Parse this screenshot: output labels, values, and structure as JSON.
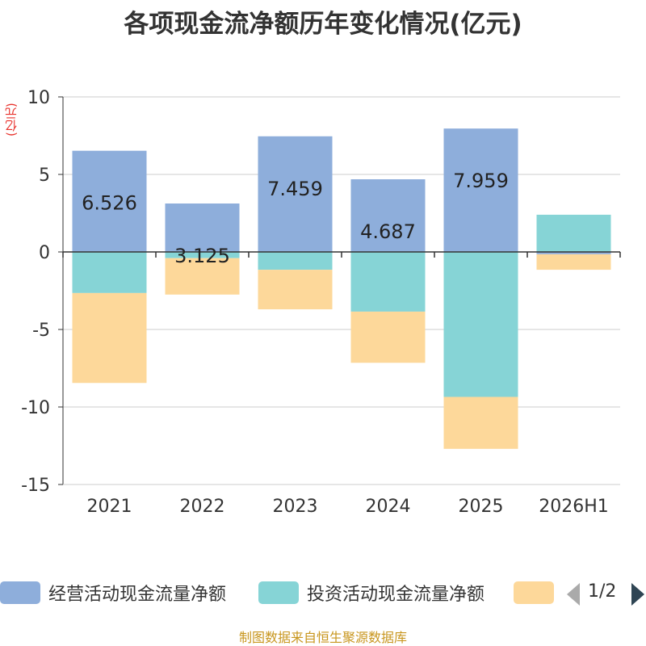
{
  "chart_data": {
    "type": "bar",
    "stacked": true,
    "title": "各项现金流净额历年变化情况(亿元)",
    "unit_label": "(亿元)",
    "categories": [
      "2021",
      "2022",
      "2023",
      "2024",
      "2025",
      "2026H1"
    ],
    "ylim": [
      -15,
      10
    ],
    "yticks": [
      10,
      5,
      0,
      -5,
      -10,
      -15
    ],
    "grid": true,
    "series": [
      {
        "name": "经营活动现金流量净额",
        "color": "#8eaedb",
        "values": [
          6.526,
          3.125,
          7.459,
          4.687,
          7.959,
          -0.15
        ],
        "labels": [
          "6.526",
          "3.125",
          "7.459",
          "4.687",
          "7.959",
          ""
        ]
      },
      {
        "name": "投资活动现金流量净额",
        "color": "#86d4d6",
        "values": [
          -2.65,
          -0.4,
          -1.15,
          -3.85,
          -9.35,
          2.4
        ]
      },
      {
        "name": "",
        "color": "#fdd89a",
        "values": [
          -5.8,
          -2.35,
          -2.55,
          -3.3,
          -3.35,
          -1.0
        ]
      }
    ]
  },
  "legend": {
    "items": [
      {
        "label": "经营活动现金流量净额",
        "color": "#8eaedb"
      },
      {
        "label": "投资活动现金流量净额",
        "color": "#86d4d6"
      },
      {
        "label": "",
        "color": "#fdd89a"
      }
    ],
    "page": "1/2"
  },
  "source": "制图数据来自恒生聚源数据库"
}
